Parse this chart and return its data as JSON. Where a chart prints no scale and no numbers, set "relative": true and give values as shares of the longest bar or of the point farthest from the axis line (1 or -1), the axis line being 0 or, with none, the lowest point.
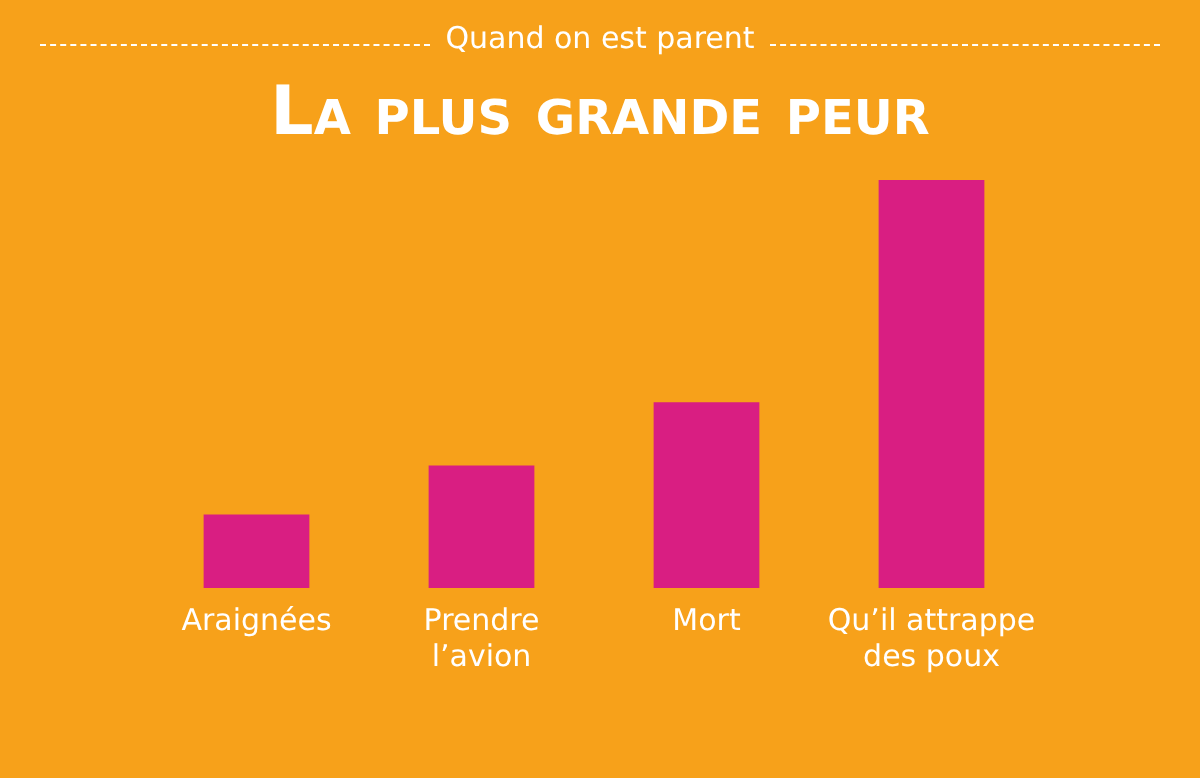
{
  "chart_data": {
    "type": "bar",
    "title": "La plus grande peur",
    "subtitle": "Quand on est parent",
    "categories": [
      "Araignées",
      "Prendre l’avion",
      "Mort",
      "Qu’il attrappe des poux"
    ],
    "values": [
      0.18,
      0.3,
      0.455,
      1
    ],
    "color": "#d91e82",
    "relative": true,
    "grid": false,
    "legend": false
  }
}
